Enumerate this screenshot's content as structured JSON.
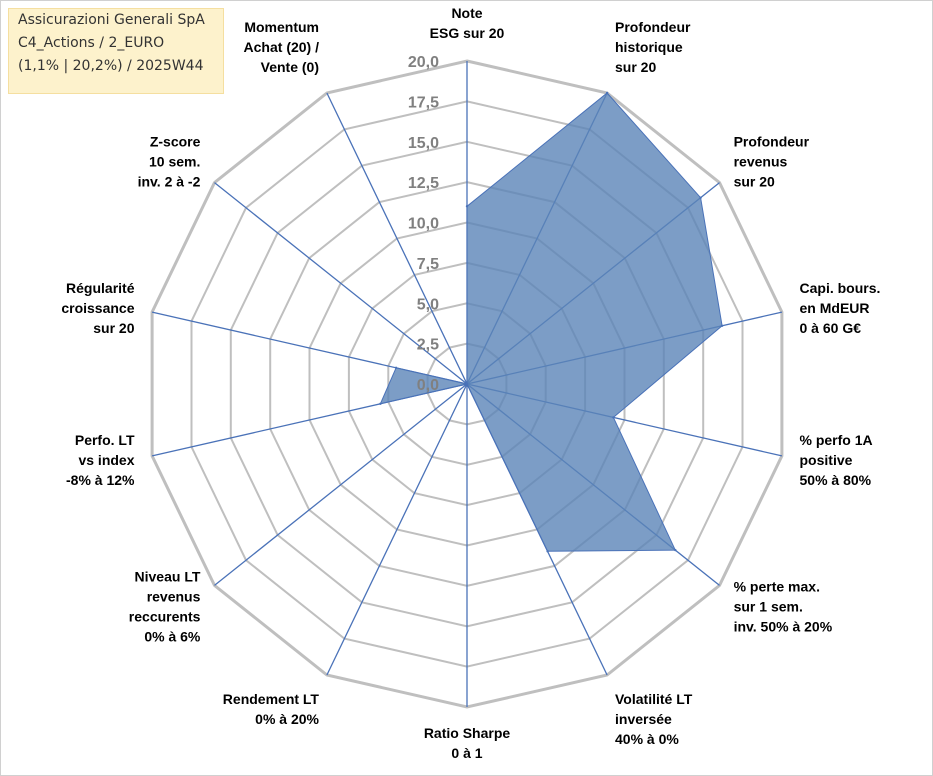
{
  "chart_data": {
    "type": "radar",
    "title_lines": [
      "Assicurazioni Generali SpA",
      "C4_Actions / 2_EURO",
      "(1,1% | 20,2%) / 2025W44"
    ],
    "axes": [
      {
        "label_lines": [
          "Note",
          "ESG sur 20"
        ]
      },
      {
        "label_lines": [
          "Profondeur",
          "historique",
          "sur 20"
        ]
      },
      {
        "label_lines": [
          "Profondeur",
          "revenus",
          "sur 20"
        ]
      },
      {
        "label_lines": [
          "Capi. bours.",
          "en MdEUR",
          "0 à 60 G€"
        ]
      },
      {
        "label_lines": [
          "% perfo 1A",
          "positive",
          "50% à 80%"
        ]
      },
      {
        "label_lines": [
          "% perte max.",
          "sur 1 sem.",
          "inv. 50% à 20%"
        ]
      },
      {
        "label_lines": [
          "Volatilité LT",
          "inversée",
          "40% à 0%"
        ]
      },
      {
        "label_lines": [
          "Ratio Sharpe",
          "0 à 1"
        ]
      },
      {
        "label_lines": [
          "Rendement LT",
          "0% à 20%"
        ]
      },
      {
        "label_lines": [
          "Niveau LT",
          "revenus",
          "reccurents",
          "0% à 6%"
        ]
      },
      {
        "label_lines": [
          "Perfo. LT",
          "vs index",
          "-8% à 12%"
        ]
      },
      {
        "label_lines": [
          "Régularité",
          "croissance",
          "sur 20"
        ]
      },
      {
        "label_lines": [
          "Z-score",
          "10 sem.",
          "inv. 2 à -2"
        ]
      },
      {
        "label_lines": [
          "Momentum",
          "Achat (20) /",
          "Vente (0)"
        ]
      }
    ],
    "values": [
      11.0,
      20.0,
      18.5,
      16.2,
      9.3,
      16.5,
      11.5,
      0.0,
      0.0,
      0.0,
      5.5,
      4.5,
      0.0,
      0.0
    ],
    "r_ticks": [
      "0,0",
      "2,5",
      "5,0",
      "7,5",
      "10,0",
      "12,5",
      "15,0",
      "17,5",
      "20,0"
    ],
    "rlim": [
      0,
      20
    ],
    "fill_color": "#5b85b8",
    "fill_opacity": 0.8,
    "spoke_color": "#4a72b8",
    "grid_color": "#bfbfbf",
    "legend": "none"
  }
}
